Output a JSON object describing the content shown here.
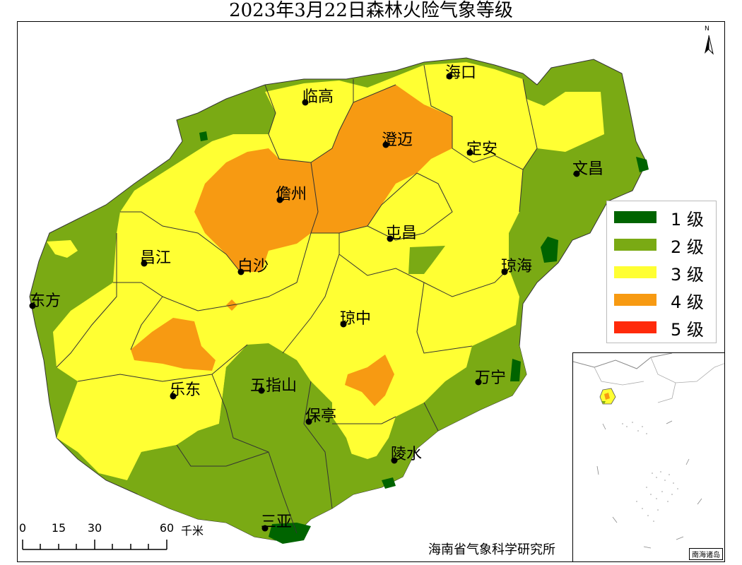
{
  "title": "2023年3月22日森林火险气象等级",
  "legend": [
    {
      "label": "1 级",
      "color": "#006400"
    },
    {
      "label": "2 级",
      "color": "#7aaa14"
    },
    {
      "label": "3 级",
      "color": "#ffff33"
    },
    {
      "label": "4 级",
      "color": "#f79a12"
    },
    {
      "label": "5 级",
      "color": "#ff2a0a"
    }
  ],
  "cities": [
    {
      "name": "海口"
    },
    {
      "name": "临高"
    },
    {
      "name": "澄迈"
    },
    {
      "name": "定安"
    },
    {
      "name": "文昌"
    },
    {
      "name": "儋州"
    },
    {
      "name": "屯昌"
    },
    {
      "name": "昌江"
    },
    {
      "name": "白沙"
    },
    {
      "name": "琼海"
    },
    {
      "name": "东方"
    },
    {
      "name": "琼中"
    },
    {
      "name": "万宁"
    },
    {
      "name": "乐东"
    },
    {
      "name": "五指山"
    },
    {
      "name": "保亭"
    },
    {
      "name": "陵水"
    },
    {
      "name": "三亚"
    }
  ],
  "scale": {
    "ticks": [
      "0",
      "15",
      "30",
      "60"
    ],
    "unit": "千米"
  },
  "north": "N",
  "source": "海南省气象科学研究所",
  "inset_label": "南海诸岛"
}
